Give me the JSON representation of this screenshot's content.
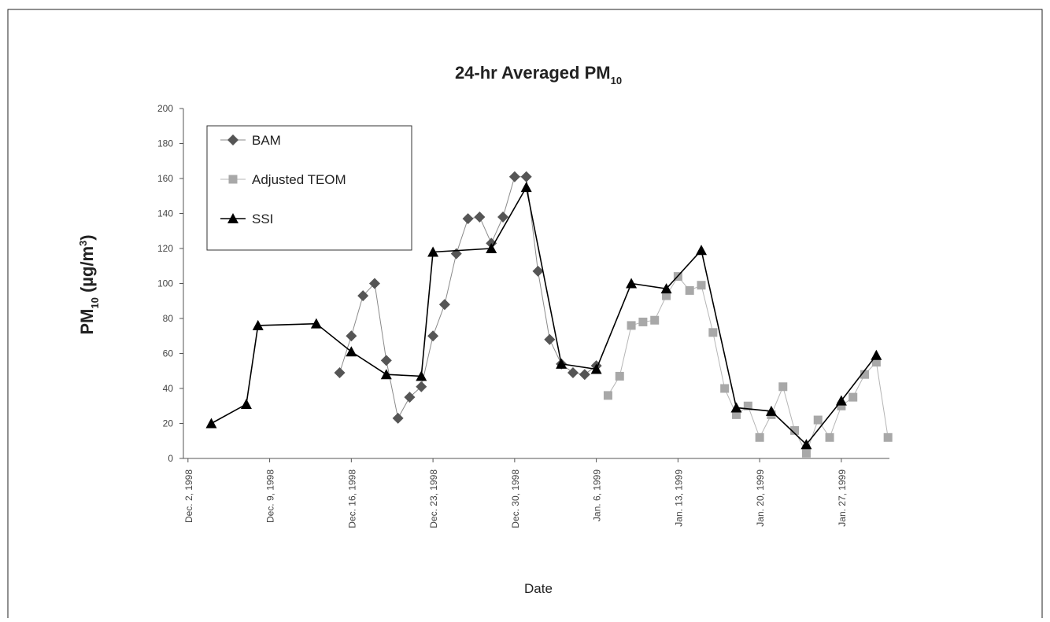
{
  "chart_data": {
    "type": "line",
    "title": "24-hr Averaged PM",
    "title_subscript": "10",
    "xlabel": "Date",
    "ylabel_parts": [
      "PM",
      "10",
      " (µg/m",
      "3",
      ")"
    ],
    "xlim": [
      "1998-12-01",
      "1999-02-01"
    ],
    "xticks": [
      {
        "value": "1998-12-02",
        "label": "Dec. 2, 1998"
      },
      {
        "value": "1998-12-09",
        "label": "Dec. 9, 1998"
      },
      {
        "value": "1998-12-16",
        "label": "Dec. 16, 1998"
      },
      {
        "value": "1998-12-23",
        "label": "Dec. 23, 1998"
      },
      {
        "value": "1998-12-30",
        "label": "Dec. 30, 1998"
      },
      {
        "value": "1999-01-06",
        "label": "Jan. 6, 1999"
      },
      {
        "value": "1999-01-13",
        "label": "Jan. 13, 1999"
      },
      {
        "value": "1999-01-20",
        "label": "Jan. 20, 1999"
      },
      {
        "value": "1999-01-27",
        "label": "Jan. 27, 1999"
      }
    ],
    "ylim": [
      0,
      200
    ],
    "yticks": [
      0,
      20,
      40,
      60,
      80,
      100,
      120,
      140,
      160,
      180,
      200
    ],
    "series": [
      {
        "name": "BAM",
        "color": "#555555",
        "line_color": "#8a8a8a",
        "marker": "diamond",
        "x": [
          "1998-12-15",
          "1998-12-16",
          "1998-12-17",
          "1998-12-18",
          "1998-12-19",
          "1998-12-20",
          "1998-12-21",
          "1998-12-22",
          "1998-12-23",
          "1998-12-24",
          "1998-12-25",
          "1998-12-26",
          "1998-12-27",
          "1998-12-28",
          "1998-12-29",
          "1998-12-30",
          "1998-12-31",
          "1999-01-01",
          "1999-01-02",
          "1999-01-03",
          "1999-01-04",
          "1999-01-05",
          "1999-01-06"
        ],
        "values": [
          49,
          70,
          93,
          100,
          56,
          23,
          35,
          41,
          70,
          88,
          117,
          137,
          138,
          123,
          138,
          161,
          161,
          107,
          68,
          54,
          49,
          48,
          53
        ]
      },
      {
        "name": "Adjusted TEOM",
        "color": "#a8a8a8",
        "line_color": "#b5b5b5",
        "marker": "square",
        "x": [
          "1999-01-07",
          "1999-01-08",
          "1999-01-09",
          "1999-01-10",
          "1999-01-11",
          "1999-01-12",
          "1999-01-13",
          "1999-01-14",
          "1999-01-15",
          "1999-01-16",
          "1999-01-17",
          "1999-01-18",
          "1999-01-19",
          "1999-01-20",
          "1999-01-21",
          "1999-01-22",
          "1999-01-23",
          "1999-01-24",
          "1999-01-25",
          "1999-01-26",
          "1999-01-27",
          "1999-01-28",
          "1999-01-29",
          "1999-01-30",
          "1999-01-31"
        ],
        "values": [
          36,
          47,
          76,
          78,
          79,
          93,
          104,
          96,
          99,
          72,
          40,
          25,
          30,
          12,
          25,
          41,
          16,
          3,
          22,
          12,
          30,
          35,
          48,
          55,
          12
        ]
      },
      {
        "name": "SSI",
        "color": "#000000",
        "line_color": "#000000",
        "marker": "triangle",
        "x": [
          "1998-12-04",
          "1998-12-07",
          "1998-12-08",
          "1998-12-13",
          "1998-12-16",
          "1998-12-19",
          "1998-12-22",
          "1998-12-23",
          "1998-12-28",
          "1998-12-31",
          "1999-01-03",
          "1999-01-06",
          "1999-01-09",
          "1999-01-12",
          "1999-01-15",
          "1999-01-18",
          "1999-01-21",
          "1999-01-24",
          "1999-01-27",
          "1999-01-30"
        ],
        "values": [
          20,
          31,
          76,
          77,
          61,
          48,
          47,
          118,
          120,
          155,
          54,
          51,
          100,
          97,
          119,
          29,
          27,
          8,
          33,
          59
        ]
      }
    ]
  }
}
